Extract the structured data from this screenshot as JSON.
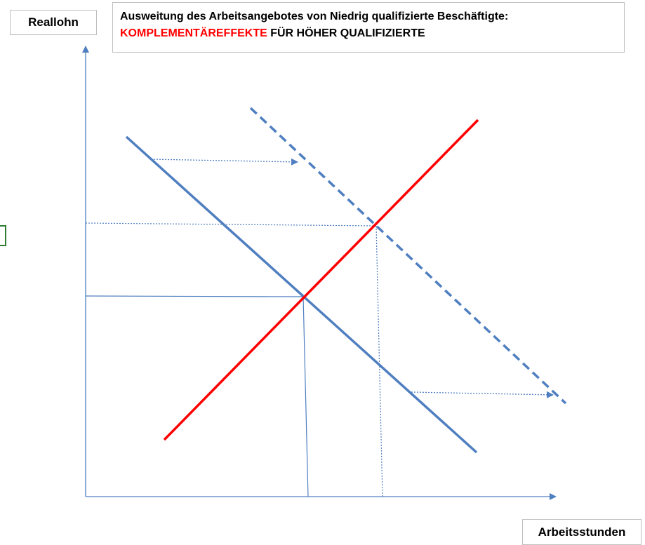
{
  "y_axis_label": "Reallohn",
  "x_axis_label": "Arbeitsstunden",
  "title": {
    "line1": "Ausweitung des Arbeitsangebotes von Niedrig qualifizierte Beschäftigte:",
    "line2_accent": "KOMPLEMENTÄREFFEKTE",
    "line2_rest": " FÜR HÖHER QUALIFIZIERTE"
  },
  "colors": {
    "axis": "#4f7fc0",
    "demand_curve": "#4f7fc0",
    "supply_curve": "#ff0000",
    "title_accent": "#ff0000",
    "cell_cursor": "#2e7d32"
  }
}
